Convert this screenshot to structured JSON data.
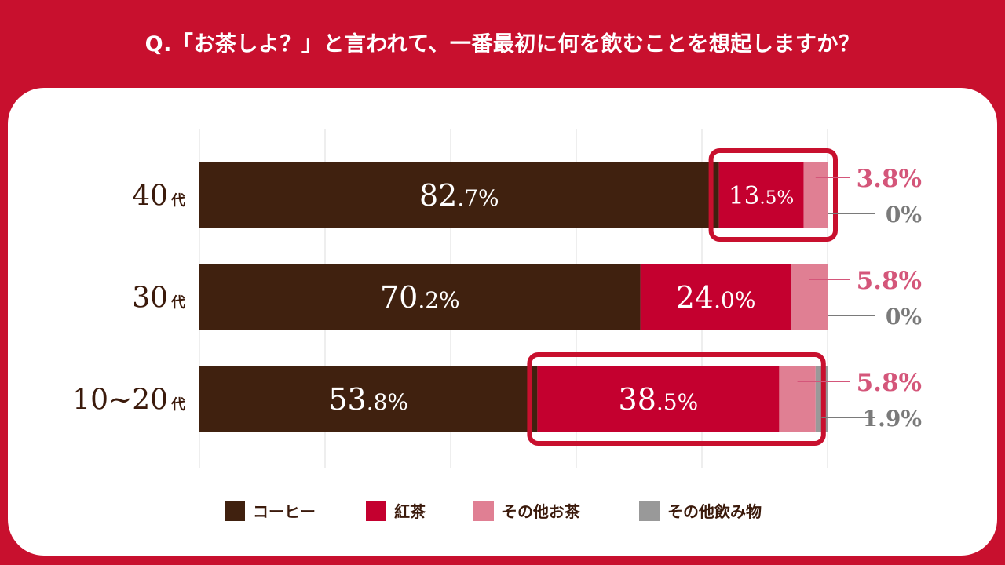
{
  "question": "Q.「お茶しよ？」と言われて、一番最初に何を飲むことを想起しますか？",
  "colors": {
    "frame": "#c8102e",
    "coffee": "#40210f",
    "black_tea": "#c4002f",
    "other_tea": "#e07f93",
    "other_drink": "#999999",
    "category_text": "#3b1a0b",
    "other_tea_label": "#d4567a",
    "other_drink_label": "#7a7a7a"
  },
  "legend": [
    {
      "label": "コーヒー",
      "color": "#40210f"
    },
    {
      "label": "紅茶",
      "color": "#c4002f"
    },
    {
      "label": "その他お茶",
      "color": "#e07f93"
    },
    {
      "label": "その他飲み物",
      "color": "#999999"
    }
  ],
  "chart_data": {
    "type": "bar",
    "orientation": "horizontal",
    "stacked": true,
    "categories": [
      "40代",
      "30代",
      "10~20代"
    ],
    "series": [
      {
        "name": "コーヒー",
        "values": [
          82.7,
          70.2,
          53.8
        ],
        "labels": [
          "82.7%",
          "70.2%",
          "53.8%"
        ]
      },
      {
        "name": "紅茶",
        "values": [
          13.5,
          24.0,
          38.5
        ],
        "labels": [
          "13.5%",
          "24.0%",
          "38.5%"
        ]
      },
      {
        "name": "その他お茶",
        "values": [
          3.8,
          5.8,
          5.8
        ],
        "labels": [
          "3.8%",
          "5.8%",
          "5.8%"
        ]
      },
      {
        "name": "その他飲み物",
        "values": [
          0,
          0,
          1.9
        ],
        "labels": [
          "0%",
          "0%",
          "1.9%"
        ]
      }
    ],
    "xlim": [
      0,
      100
    ],
    "grid": true,
    "legend_position": "bottom"
  }
}
